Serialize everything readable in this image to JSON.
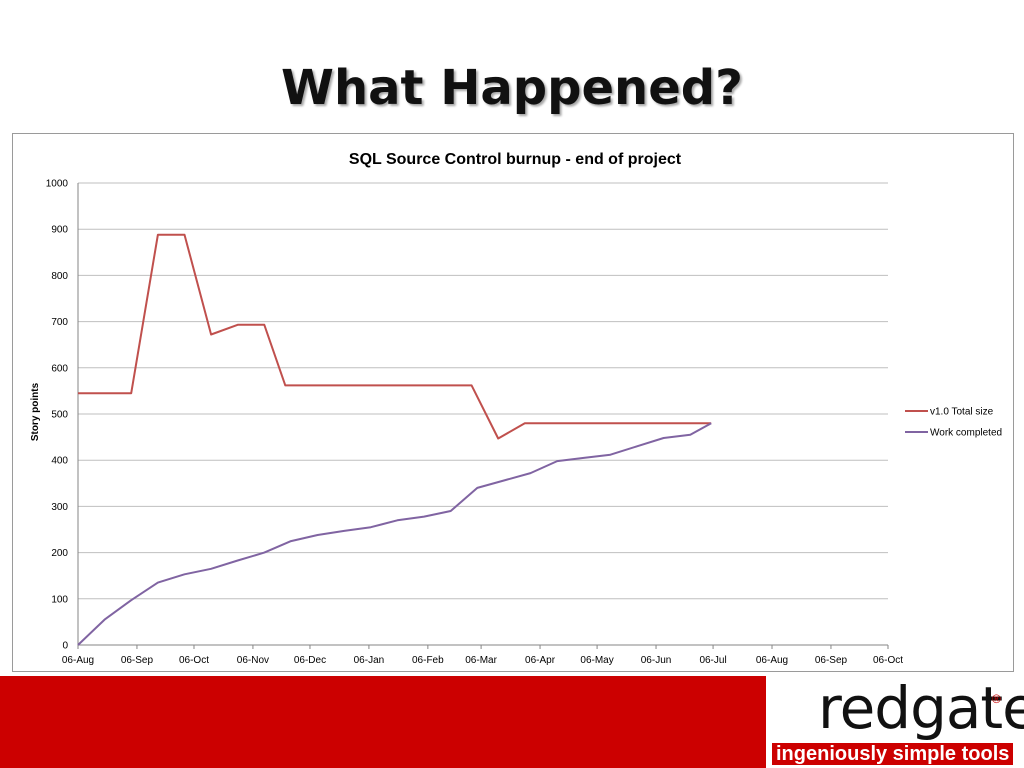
{
  "slide": {
    "title": "What Happened?"
  },
  "brand": {
    "logo_text": "redgate",
    "registered_mark": "®",
    "tagline": "ingeniously simple tools",
    "accent_color": "#cc0000"
  },
  "chart_data": {
    "type": "line",
    "title": "SQL Source Control burnup - end of project",
    "ylabel": "Story points",
    "xlabel": "",
    "ylim": [
      0,
      1000
    ],
    "yticks": [
      0,
      100,
      200,
      300,
      400,
      500,
      600,
      700,
      800,
      900,
      1000
    ],
    "xticks": [
      "06-Aug",
      "06-Sep",
      "06-Oct",
      "06-Nov",
      "06-Dec",
      "06-Jan",
      "06-Feb",
      "06-Mar",
      "06-Apr",
      "06-May",
      "06-Jun",
      "06-Jul",
      "06-Aug",
      "06-Sep",
      "06-Oct"
    ],
    "grid": true,
    "legend_position": "right",
    "series": [
      {
        "name": "v1.0 Total size",
        "color": "#c0504d",
        "x": [
          "06-Aug",
          "20-Aug",
          "03-Sep",
          "17-Sep",
          "01-Oct",
          "15-Oct",
          "29-Oct",
          "12-Nov",
          "23-Nov",
          "01-Mar",
          "15-Mar",
          "29-Mar",
          "12-Apr",
          "26-Apr",
          "10-May",
          "24-May",
          "07-Jun",
          "21-Jun",
          "05-Jul"
        ],
        "y": [
          545,
          545,
          545,
          888,
          888,
          672,
          693,
          693,
          562,
          562,
          447,
          480,
          480,
          480,
          480,
          480,
          480,
          480,
          480
        ]
      },
      {
        "name": "Work completed",
        "color": "#8064a2",
        "x": [
          "06-Aug",
          "20-Aug",
          "03-Sep",
          "17-Sep",
          "01-Oct",
          "15-Oct",
          "29-Oct",
          "12-Nov",
          "26-Nov",
          "10-Dec",
          "24-Dec",
          "07-Jan",
          "21-Jan",
          "04-Feb",
          "18-Feb",
          "04-Mar",
          "18-Mar",
          "01-Apr",
          "15-Apr",
          "29-Apr",
          "13-May",
          "27-May",
          "10-Jun",
          "24-Jun",
          "05-Jul"
        ],
        "y": [
          0,
          55,
          97,
          135,
          153,
          165,
          183,
          200,
          225,
          238,
          247,
          255,
          270,
          278,
          290,
          340,
          356,
          372,
          398,
          405,
          412,
          430,
          448,
          455,
          480
        ]
      }
    ]
  }
}
